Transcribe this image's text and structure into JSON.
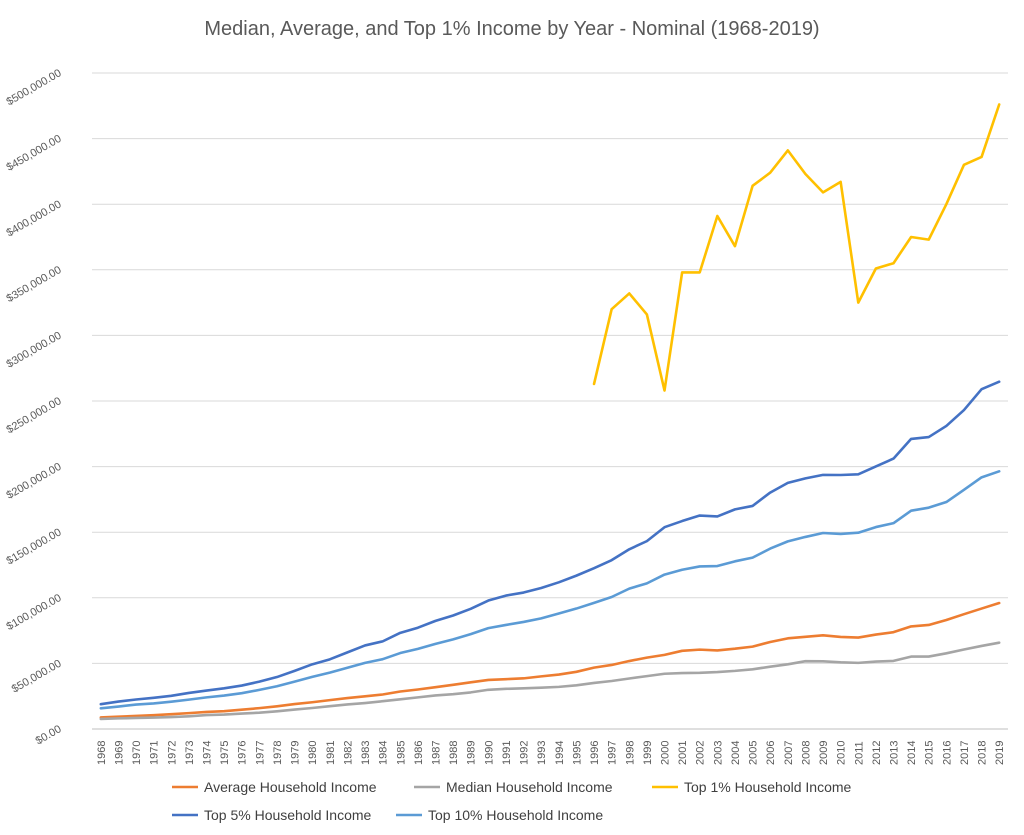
{
  "chart_data": {
    "type": "line",
    "title": "Median, Average, and Top 1% Income by Year - Nominal (1968-2019)",
    "xlabel": "",
    "ylabel": "",
    "ylim": [
      0,
      500000
    ],
    "yticks": [
      0,
      50000,
      100000,
      150000,
      200000,
      250000,
      300000,
      350000,
      400000,
      450000,
      500000
    ],
    "ytick_labels": [
      "$0.00",
      "$50,000.00",
      "$100,000.00",
      "$150,000.00",
      "$200,000.00",
      "$250,000.00",
      "$300,000.00",
      "$350,000.00",
      "$400,000.00",
      "$450,000.00",
      "$500,000.00"
    ],
    "grid": "horizontal",
    "legend_position": "bottom",
    "x": [
      1968,
      1969,
      1970,
      1971,
      1972,
      1973,
      1974,
      1975,
      1976,
      1977,
      1978,
      1979,
      1980,
      1981,
      1982,
      1983,
      1984,
      1985,
      1986,
      1987,
      1988,
      1989,
      1990,
      1991,
      1992,
      1993,
      1994,
      1995,
      1996,
      1997,
      1998,
      1999,
      2000,
      2001,
      2002,
      2003,
      2004,
      2005,
      2006,
      2007,
      2008,
      2009,
      2010,
      2011,
      2012,
      2013,
      2014,
      2015,
      2016,
      2017,
      2018,
      2019
    ],
    "series": [
      {
        "name": "Average Household Income",
        "color": "#ED7D31",
        "values": [
          8800,
          9400,
          10000,
          10500,
          11300,
          12100,
          13000,
          13600,
          14700,
          15900,
          17300,
          19000,
          20400,
          22000,
          23600,
          24900,
          26300,
          28600,
          30100,
          31900,
          33700,
          35600,
          37400,
          38000,
          38600,
          40100,
          41500,
          43600,
          46800,
          48800,
          51800,
          54400,
          56500,
          59600,
          60500,
          59900,
          61200,
          62800,
          66300,
          69100,
          70300,
          71400,
          70200,
          69700,
          72000,
          73800,
          78200,
          79300,
          83100,
          87500,
          91800,
          96000
        ]
      },
      {
        "name": "Median Household Income",
        "color": "#A5A5A5",
        "values": [
          7700,
          8100,
          8400,
          8700,
          9100,
          9700,
          10600,
          11000,
          11800,
          12400,
          13500,
          14800,
          16000,
          17400,
          18700,
          19800,
          21200,
          22600,
          24100,
          25600,
          26500,
          27900,
          29900,
          30600,
          31000,
          31500,
          32100,
          33300,
          35100,
          36600,
          38500,
          40300,
          42100,
          42600,
          42800,
          43400,
          44300,
          45500,
          47500,
          49300,
          51700,
          51600,
          50800,
          50400,
          51400,
          51900,
          55200,
          55200,
          57700,
          60600,
          63300,
          65800
        ]
      },
      {
        "name": "Top 1% Household Income",
        "color": "#FFC000",
        "values": [
          null,
          null,
          null,
          null,
          null,
          null,
          null,
          null,
          null,
          null,
          null,
          null,
          null,
          null,
          null,
          null,
          null,
          null,
          null,
          null,
          null,
          null,
          null,
          null,
          null,
          null,
          null,
          null,
          263000,
          320000,
          332000,
          316000,
          258000,
          348000,
          348000,
          391000,
          368000,
          414000,
          424000,
          441000,
          423000,
          409000,
          417000,
          325000,
          351000,
          355000,
          375000,
          373000,
          400000,
          430000,
          436000,
          476000
        ]
      },
      {
        "name": "Top 5% Household Income",
        "color": "#4472C4",
        "values": [
          18900,
          20900,
          22500,
          23800,
          25300,
          27500,
          29300,
          31000,
          33100,
          36100,
          39600,
          44300,
          49300,
          53100,
          58400,
          63700,
          66800,
          73300,
          77200,
          82400,
          86500,
          91600,
          97900,
          101700,
          104000,
          107500,
          111800,
          116900,
          122600,
          128700,
          137000,
          143200,
          153800,
          158500,
          162700,
          162000,
          167400,
          170000,
          180200,
          187600,
          191000,
          193700,
          193600,
          194100,
          200100,
          206100,
          221100,
          222500,
          231000,
          243100,
          259000,
          264700
        ]
      },
      {
        "name": "Top 10% Household Income",
        "color": "#5B9BD5",
        "values": [
          15800,
          17100,
          18600,
          19500,
          20800,
          22400,
          24100,
          25500,
          27300,
          29800,
          32600,
          36100,
          39700,
          43000,
          46700,
          50400,
          53200,
          57900,
          61100,
          64900,
          68300,
          72300,
          76900,
          79300,
          81600,
          84300,
          88000,
          91800,
          96100,
          100600,
          107000,
          111000,
          117700,
          121400,
          123900,
          124200,
          127800,
          130600,
          137500,
          143000,
          146400,
          149400,
          148700,
          149600,
          153900,
          156900,
          166400,
          168700,
          173000,
          182300,
          191800,
          196400
        ]
      }
    ]
  }
}
